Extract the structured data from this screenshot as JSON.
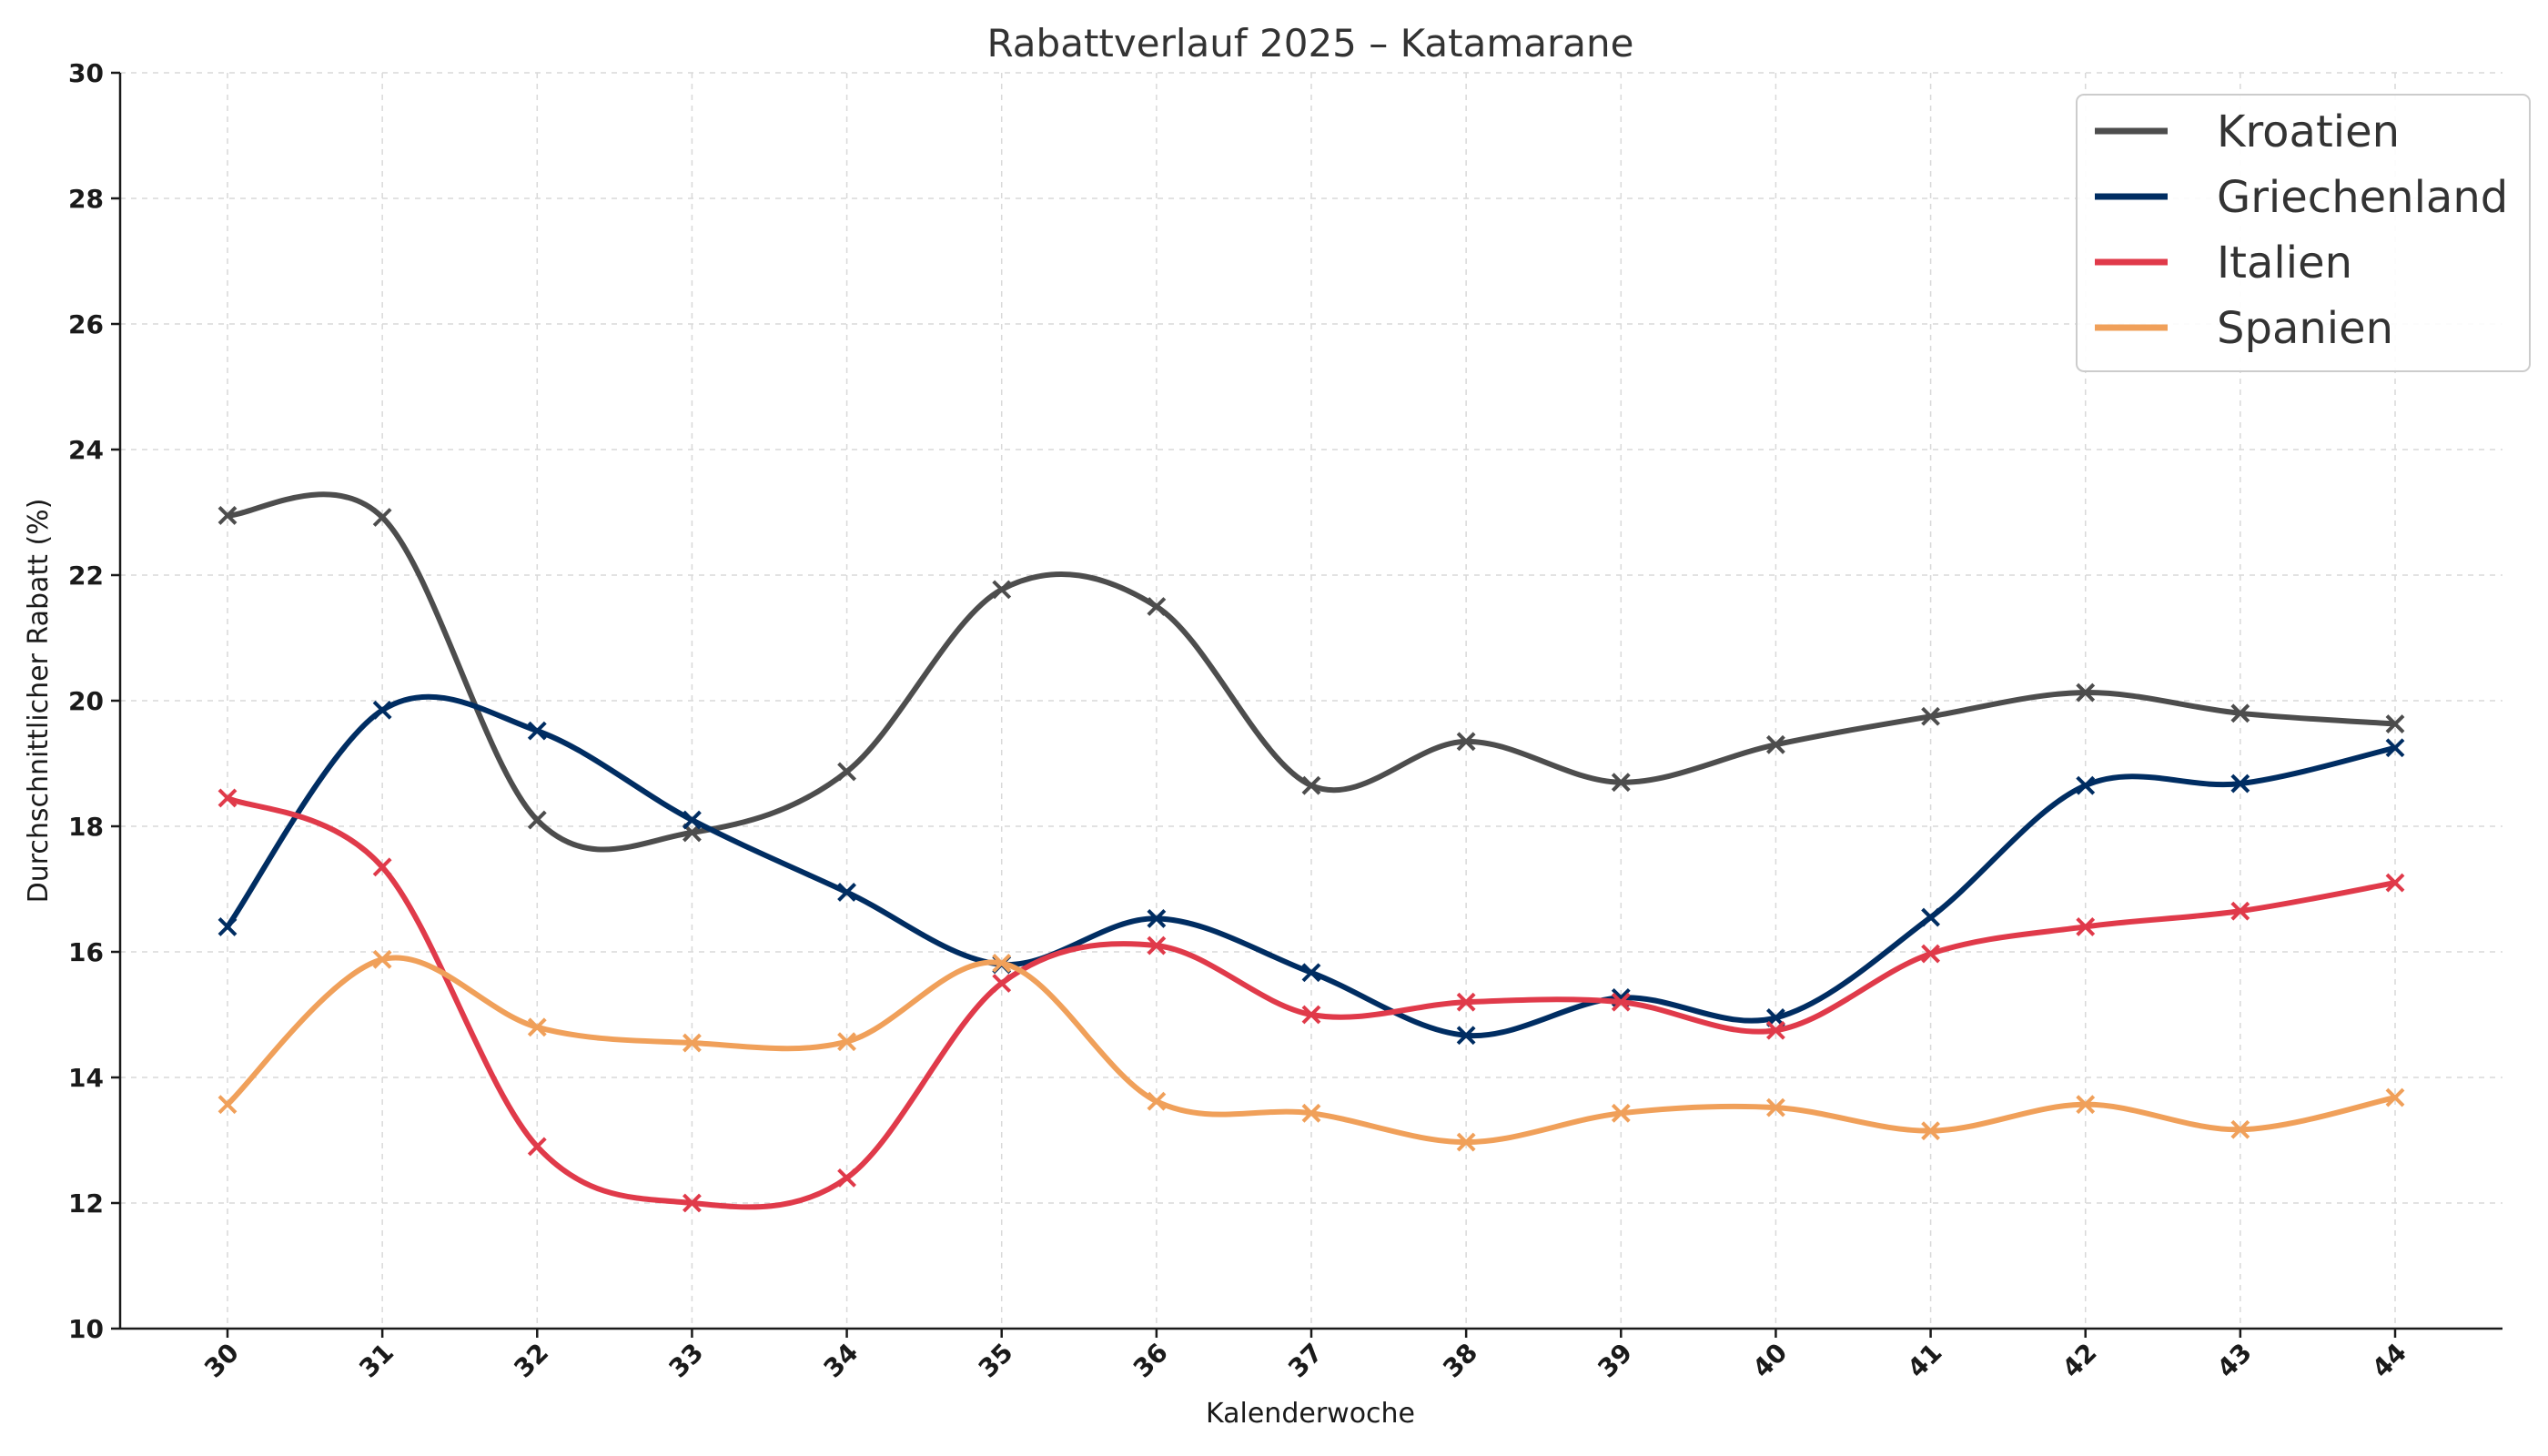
{
  "chart_data": {
    "type": "line",
    "title": "Rabattverlauf 2025 – Katamarane",
    "xlabel": "Kalenderwoche",
    "ylabel": "Durchschnittlicher Rabatt (%)",
    "categories": [
      "30",
      "31",
      "32",
      "33",
      "34",
      "35",
      "36",
      "37",
      "38",
      "39",
      "40",
      "41",
      "42",
      "43",
      "44"
    ],
    "yticks": [
      "10",
      "12",
      "14",
      "16",
      "18",
      "20",
      "22",
      "24",
      "26",
      "28",
      "30"
    ],
    "ylim": [
      10,
      30
    ],
    "grid": true,
    "smoothed": true,
    "marker": "x",
    "legend_position": "top-right",
    "series": [
      {
        "name": "Kroatien",
        "color": "#4d4d4d",
        "values": [
          22.95,
          22.92,
          18.1,
          17.9,
          18.87,
          21.77,
          21.5,
          18.65,
          19.35,
          18.7,
          19.3,
          19.75,
          20.13,
          19.8,
          19.63
        ]
      },
      {
        "name": "Griechenland",
        "color": "#002d62",
        "values": [
          16.4,
          19.85,
          19.52,
          18.1,
          16.95,
          15.8,
          16.53,
          15.67,
          14.67,
          15.27,
          14.95,
          16.55,
          18.65,
          18.68,
          19.25
        ]
      },
      {
        "name": "Italien",
        "color": "#e03a4a",
        "values": [
          18.45,
          17.35,
          12.9,
          12.0,
          12.4,
          15.5,
          16.1,
          15.0,
          15.2,
          15.2,
          14.75,
          15.97,
          16.4,
          16.65,
          17.1
        ]
      },
      {
        "name": "Spanien",
        "color": "#f0a05a",
        "values": [
          13.57,
          15.88,
          14.8,
          14.55,
          14.57,
          15.82,
          13.62,
          13.43,
          12.97,
          13.43,
          13.52,
          13.15,
          13.57,
          13.17,
          13.68
        ]
      }
    ]
  }
}
